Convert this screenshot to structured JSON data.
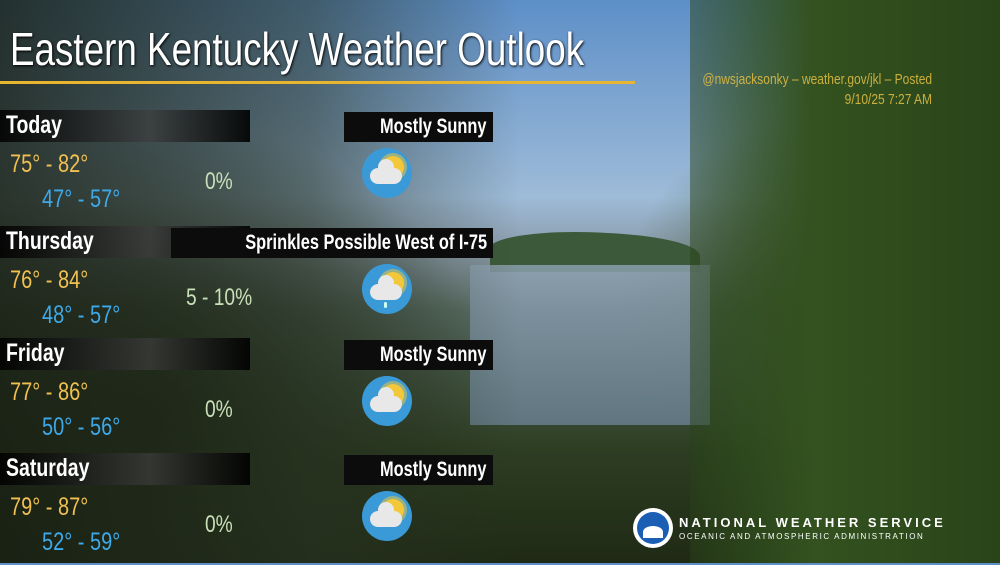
{
  "header": {
    "title": "Eastern Kentucky Weather Outlook",
    "credit_line1": "@nwsjacksonky – weather.gov/jkl – Posted",
    "credit_line2": "9/10/25 7:27 AM",
    "accent_color": "#e8b530"
  },
  "days": [
    {
      "day": "Today",
      "condition": "Mostly Sunny",
      "high": "75° - 82°",
      "low": "47° - 57°",
      "precip": "0%",
      "icon": "partly-sunny-icon"
    },
    {
      "day": "Thursday",
      "condition": "Sprinkles Possible West of I-75",
      "high": "76° - 84°",
      "low": "48° - 57°",
      "precip": "5 - 10%",
      "icon": "sun-cloud-sprinkle-icon"
    },
    {
      "day": "Friday",
      "condition": "Mostly Sunny",
      "high": "77° - 86°",
      "low": "50° - 56°",
      "precip": "0%",
      "icon": "partly-sunny-icon"
    },
    {
      "day": "Saturday",
      "condition": "Mostly Sunny",
      "high": "79° - 87°",
      "low": "52° - 59°",
      "precip": "0%",
      "icon": "partly-sunny-icon"
    }
  ],
  "footer": {
    "org_name": "NATIONAL WEATHER SERVICE",
    "org_sub": "OCEANIC AND ATMOSPHERIC ADMINISTRATION",
    "logo_text": "NOAA"
  }
}
